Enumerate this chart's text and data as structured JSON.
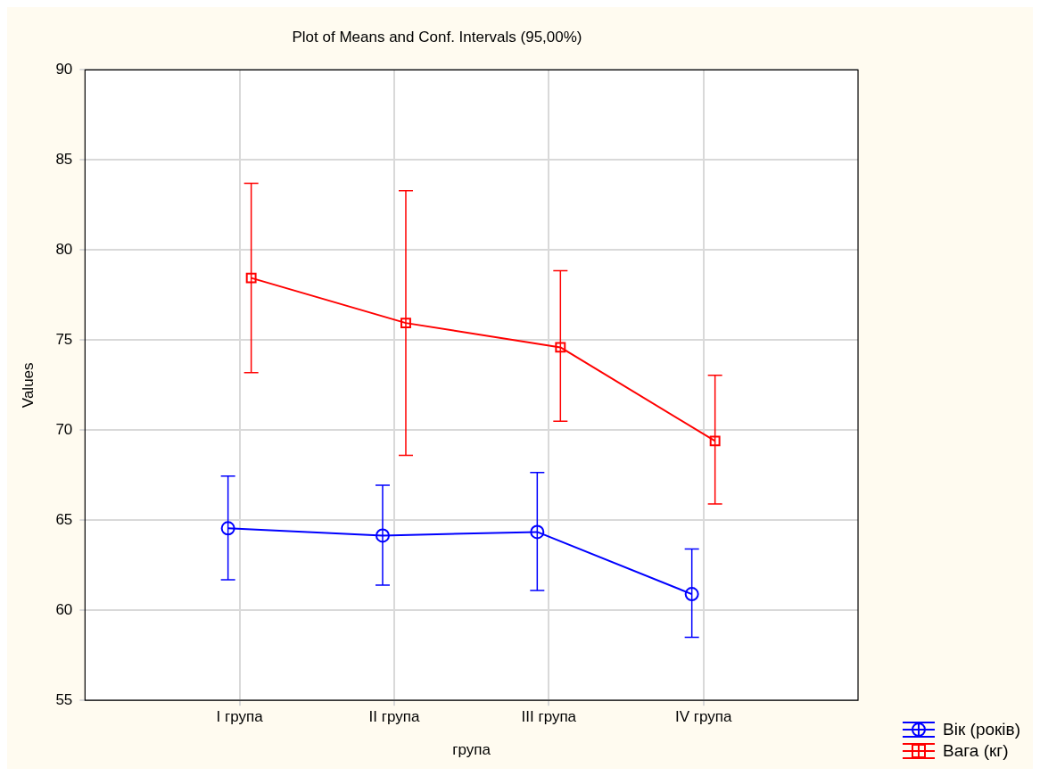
{
  "chart_data": {
    "type": "line",
    "title": "Plot of Means and Conf. Intervals (95,00%)",
    "xlabel": "група",
    "ylabel": "Values",
    "categories": [
      "I група",
      "II група",
      "III група",
      "IV група"
    ],
    "ylim": [
      55,
      90
    ],
    "yticks": [
      55,
      60,
      65,
      70,
      75,
      80,
      85,
      90
    ],
    "grid": true,
    "legend": "bottom right",
    "series": [
      {
        "name": "Вік (років)",
        "color": "#0000ff",
        "marker": "circle",
        "values": [
          64.55,
          64.15,
          64.35,
          60.9
        ],
        "errors": [
          [
            61.7,
            67.45
          ],
          [
            61.4,
            66.95
          ],
          [
            61.1,
            67.65
          ],
          [
            58.5,
            63.4
          ]
        ]
      },
      {
        "name": "Вага (кг)",
        "color": "#ff0000",
        "marker": "square",
        "values": [
          78.45,
          75.95,
          74.6,
          69.4
        ],
        "errors": [
          [
            73.2,
            83.7
          ],
          [
            68.6,
            83.3
          ],
          [
            70.5,
            78.85
          ],
          [
            65.9,
            73.05
          ]
        ]
      }
    ]
  }
}
